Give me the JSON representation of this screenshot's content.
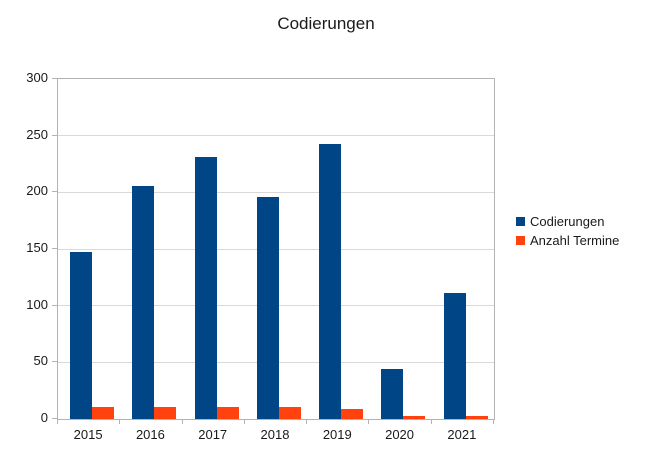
{
  "title": "Codierungen",
  "colors": {
    "series1": "#004586",
    "series2": "#FF420E",
    "grid": "#d9d9d9",
    "axis": "#b3b3b3",
    "text": "#1a1a1a",
    "background": "#ffffff"
  },
  "chart_data": {
    "type": "bar",
    "title": "Codierungen",
    "categories": [
      "2015",
      "2016",
      "2017",
      "2018",
      "2019",
      "2020",
      "2021"
    ],
    "series": [
      {
        "name": "Codierungen",
        "color": "#004586",
        "values": [
          147,
          206,
          231,
          196,
          243,
          44,
          111
        ]
      },
      {
        "name": "Anzahl Termine",
        "color": "#FF420E",
        "values": [
          11,
          11,
          11,
          11,
          9,
          3,
          3
        ]
      }
    ],
    "xlabel": "",
    "ylabel": "",
    "ylim": [
      0,
      300
    ],
    "yticks": [
      0,
      50,
      100,
      150,
      200,
      250,
      300
    ],
    "grid": true,
    "legend_position": "right"
  },
  "legend": {
    "items": [
      {
        "label": "Codierungen",
        "color": "#004586"
      },
      {
        "label": "Anzahl Termine",
        "color": "#FF420E"
      }
    ]
  }
}
